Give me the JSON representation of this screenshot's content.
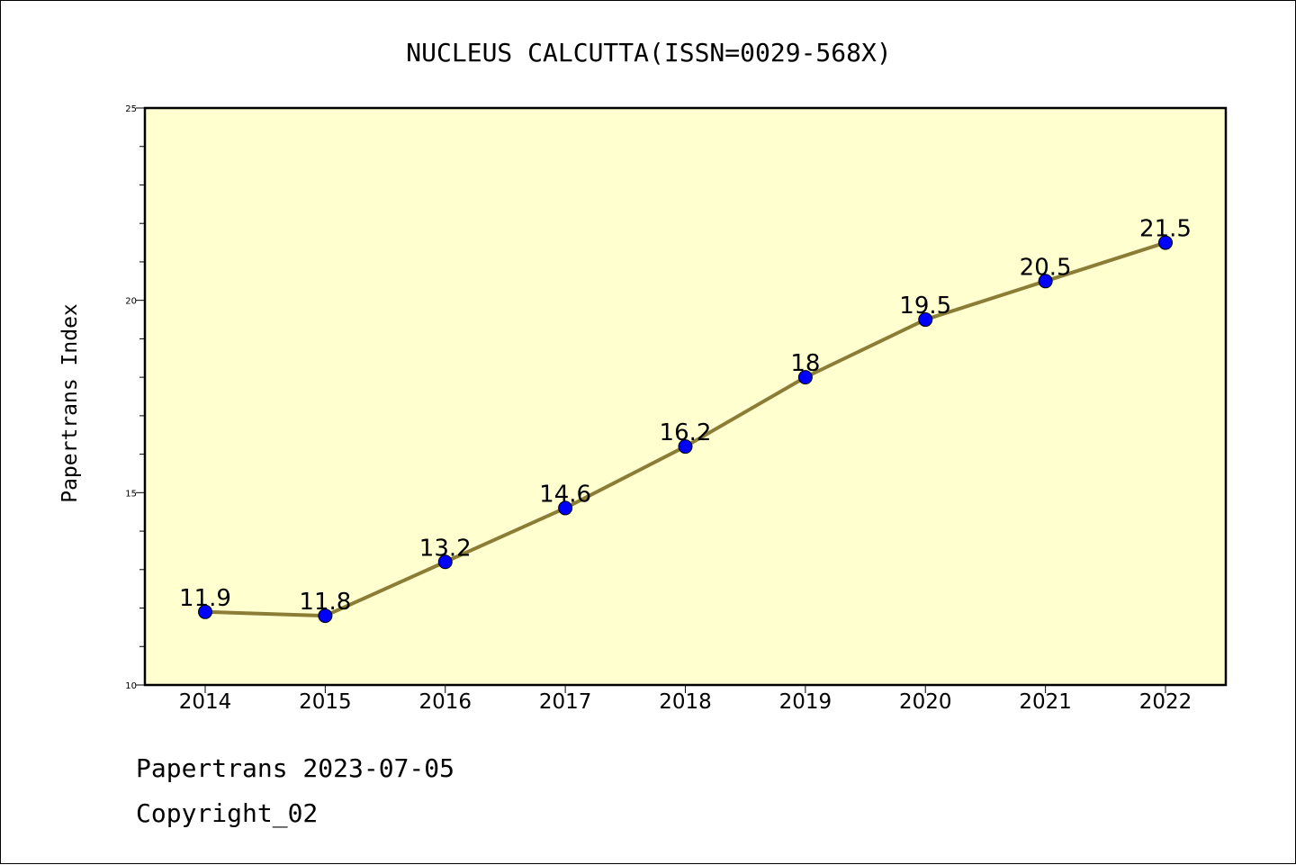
{
  "chart_data": {
    "type": "line",
    "title": "NUCLEUS CALCUTTA(ISSN=0029-568X)",
    "xlabel": "",
    "ylabel": "Papertrans Index",
    "categories": [
      "2014",
      "2015",
      "2016",
      "2017",
      "2018",
      "2019",
      "2020",
      "2021",
      "2022"
    ],
    "values": [
      11.9,
      11.8,
      13.2,
      14.6,
      16.2,
      18,
      19.5,
      20.5,
      21.5
    ],
    "data_labels": [
      "11.9",
      "11.8",
      "13.2",
      "14.6",
      "16.2",
      "18",
      "19.5",
      "20.5",
      "21.5"
    ],
    "ylim": [
      10,
      25
    ],
    "yticks": [
      10,
      15,
      20,
      25
    ],
    "grid": false,
    "colors": {
      "plot_background": "#ffffd0",
      "line": "#8b7d35",
      "marker": "#0000ff"
    }
  },
  "footer": {
    "line1": "Papertrans 2023-07-05",
    "line2": "Copyright_02"
  }
}
